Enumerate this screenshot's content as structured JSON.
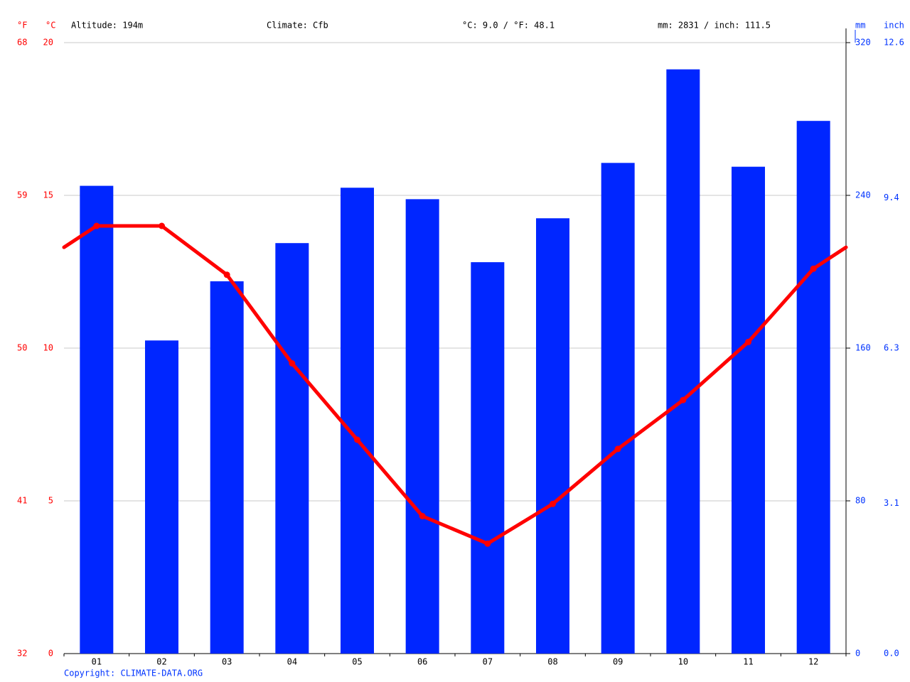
{
  "chart_data": {
    "type": "combo",
    "header": [
      "Altitude: 194m",
      "Climate: Cfb",
      "°C: 9.0 / °F: 48.1",
      "mm: 2831 / inch: 111.5"
    ],
    "footer": "Copyright: CLIMATE-DATA.ORG",
    "categories": [
      "01",
      "02",
      "03",
      "04",
      "05",
      "06",
      "07",
      "08",
      "09",
      "10",
      "11",
      "12"
    ],
    "ylabel": "°C",
    "ylim": [
      0,
      20
    ],
    "yticks": [
      0,
      5,
      10,
      15,
      20
    ],
    "yflabel": "°F",
    "yflim": [
      32,
      68
    ],
    "yfticks": [
      32,
      41,
      50,
      59,
      68
    ],
    "y2label": "mm",
    "y2lim": [
      0,
      320
    ],
    "y2ticks": [
      0,
      80,
      160,
      240,
      320
    ],
    "y3label": "inch",
    "y3lim": [
      0,
      12.6
    ],
    "y3ticks": [
      {
        "value": 0,
        "label": "0.0"
      },
      3.1,
      6.3,
      9.4,
      12.6
    ],
    "grid": true,
    "series": [
      {
        "type": "bar",
        "axis": "y2",
        "color": "#0026ff",
        "values": [
          245,
          164,
          195,
          215,
          244,
          238,
          205,
          228,
          257,
          306,
          255,
          279
        ]
      },
      {
        "type": "line",
        "color": "#ff0000",
        "values": [
          14.0,
          14.0,
          12.4,
          9.5,
          7.0,
          4.5,
          3.6,
          4.9,
          6.7,
          8.3,
          10.2,
          12.6
        ]
      }
    ]
  }
}
